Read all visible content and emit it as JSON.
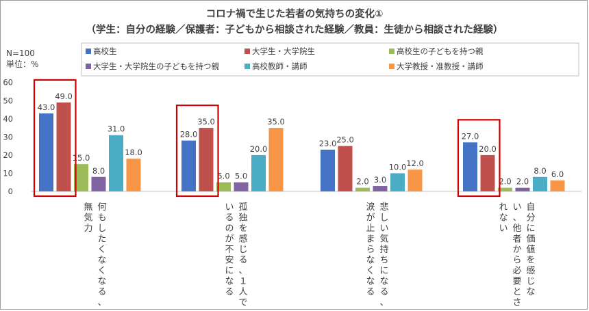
{
  "chart_data": {
    "type": "bar",
    "title": "コロナ禍で生じた若者の気持ちの変化①",
    "subtitle": "（学生：自分の経験／保護者：子どもから相談された経験／教員：生徒から相談された経験）",
    "sample_note": "N=100",
    "unit_note": "単位：%",
    "ylim": [
      0,
      60
    ],
    "yticks": [
      0,
      10,
      20,
      30,
      40,
      50,
      60
    ],
    "grid": false,
    "legend_position": "top",
    "categories": [
      [
        "何もしたくなくなる、",
        "無気力"
      ],
      [
        "孤独を感じる、１人で",
        "いるのが不安になる"
      ],
      [
        "悲しい気持ちになる、",
        "涙が止まらなくなる"
      ],
      [
        "自分に価値を感じな",
        "い、他者から必要とさ",
        "れない"
      ]
    ],
    "series": [
      {
        "name": "高校生",
        "color": "#4472c4",
        "values": [
          43.0,
          28.0,
          23.0,
          27.0
        ]
      },
      {
        "name": "大学生・大学院生",
        "color": "#c0504d",
        "values": [
          49.0,
          35.0,
          25.0,
          20.0
        ]
      },
      {
        "name": "高校生の子どもを持つ親",
        "color": "#9bbb59",
        "values": [
          15.0,
          5.0,
          2.0,
          2.0
        ]
      },
      {
        "name": "大学生・大学院生の子どもを持つ親",
        "color": "#8064a2",
        "values": [
          8.0,
          5.0,
          3.0,
          2.0
        ]
      },
      {
        "name": "高校教師・講師",
        "color": "#4bacc6",
        "values": [
          31.0,
          20.0,
          10.0,
          8.0
        ]
      },
      {
        "name": "大学教授・准教授・講師",
        "color": "#f79646",
        "values": [
          18.0,
          35.0,
          12.0,
          6.0
        ]
      }
    ],
    "highlight_color": "#d00000",
    "highlight_groups": [
      0,
      1,
      3
    ]
  }
}
